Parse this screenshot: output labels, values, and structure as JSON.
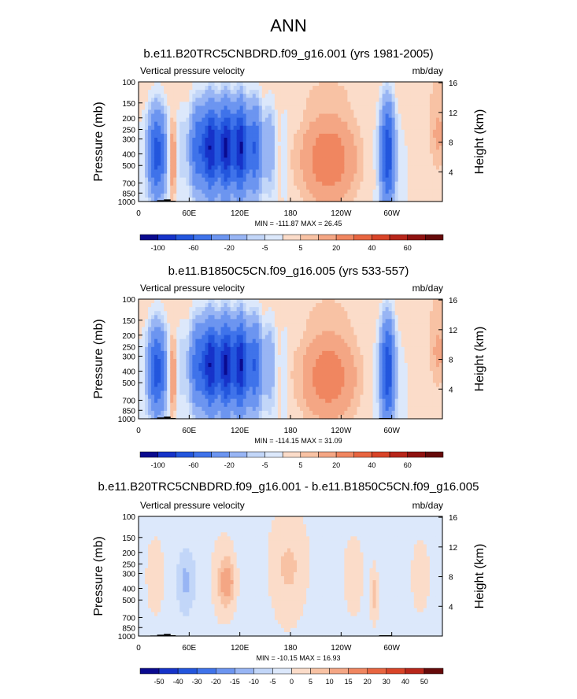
{
  "figure": {
    "title": "ANN"
  },
  "chart_data": [
    {
      "type": "heatmap",
      "title": "b.e11.B20TRC5CNBDRD.f09_g16.001 (yrs 1981-2005)",
      "subtitle_left": "Vertical pressure velocity",
      "subtitle_right": "mb/day",
      "ylabel": "Pressure (mb)",
      "ylabel_right": "Height (km)",
      "xticks": [
        "0",
        "60E",
        "120E",
        "180",
        "120W",
        "60W"
      ],
      "yticks": [
        "100",
        "150",
        "200",
        "250",
        "300",
        "400",
        "500",
        "700",
        "850",
        "1000"
      ],
      "yticks_right": [
        "16",
        "12",
        "8",
        "4"
      ],
      "stats": "MIN = -111.87  MAX =  26.45",
      "colorbar_levels": [
        "-100",
        "-60",
        "-20",
        "-5",
        "5",
        "20",
        "40",
        "60"
      ],
      "colorbar_colors": [
        "#0a0a8f",
        "#1633c9",
        "#2356dd",
        "#3f73ea",
        "#6c95f0",
        "#98b5f4",
        "#c2d6f8",
        "#dce8fb",
        "#fbdcc9",
        "#f8c2a4",
        "#f4a684",
        "#f08660",
        "#e86540",
        "#d94428",
        "#b8261a",
        "#8f1210",
        "#660a0a"
      ]
    },
    {
      "type": "heatmap",
      "title": "b.e11.B1850C5CN.f09_g16.005 (yrs 533-557)",
      "subtitle_left": "Vertical pressure velocity",
      "subtitle_right": "mb/day",
      "ylabel": "Pressure (mb)",
      "ylabel_right": "Height (km)",
      "xticks": [
        "0",
        "60E",
        "120E",
        "180",
        "120W",
        "60W"
      ],
      "yticks": [
        "100",
        "150",
        "200",
        "250",
        "300",
        "400",
        "500",
        "700",
        "850",
        "1000"
      ],
      "yticks_right": [
        "16",
        "12",
        "8",
        "4"
      ],
      "stats": "MIN = -114.15  MAX =  31.09",
      "colorbar_levels": [
        "-100",
        "-60",
        "-20",
        "-5",
        "5",
        "20",
        "40",
        "60"
      ],
      "colorbar_colors": [
        "#0a0a8f",
        "#1633c9",
        "#2356dd",
        "#3f73ea",
        "#6c95f0",
        "#98b5f4",
        "#c2d6f8",
        "#dce8fb",
        "#fbdcc9",
        "#f8c2a4",
        "#f4a684",
        "#f08660",
        "#e86540",
        "#d94428",
        "#b8261a",
        "#8f1210",
        "#660a0a"
      ]
    },
    {
      "type": "heatmap",
      "title": "b.e11.B20TRC5CNBDRD.f09_g16.001 - b.e11.B1850C5CN.f09_g16.005",
      "subtitle_left": "Vertical pressure velocity",
      "subtitle_right": "mb/day",
      "ylabel": "Pressure (mb)",
      "ylabel_right": "Height (km)",
      "xticks": [
        "0",
        "60E",
        "120E",
        "180",
        "120W",
        "60W"
      ],
      "yticks": [
        "100",
        "150",
        "200",
        "250",
        "300",
        "400",
        "500",
        "700",
        "850",
        "1000"
      ],
      "yticks_right": [
        "16",
        "12",
        "8",
        "4"
      ],
      "stats": "MIN = -10.15  MAX =  16.93",
      "colorbar_levels": [
        "-50",
        "-40",
        "-30",
        "-20",
        "-15",
        "-10",
        "-5",
        "0",
        "5",
        "10",
        "15",
        "20",
        "30",
        "40",
        "50"
      ],
      "colorbar_colors": [
        "#0a0a8f",
        "#1633c9",
        "#2356dd",
        "#3f73ea",
        "#6c95f0",
        "#98b5f4",
        "#c2d6f8",
        "#dce8fb",
        "#fbdcc9",
        "#f8c2a4",
        "#f4a684",
        "#f08660",
        "#e86540",
        "#d94428",
        "#b8261a",
        "#660a0a"
      ]
    }
  ]
}
